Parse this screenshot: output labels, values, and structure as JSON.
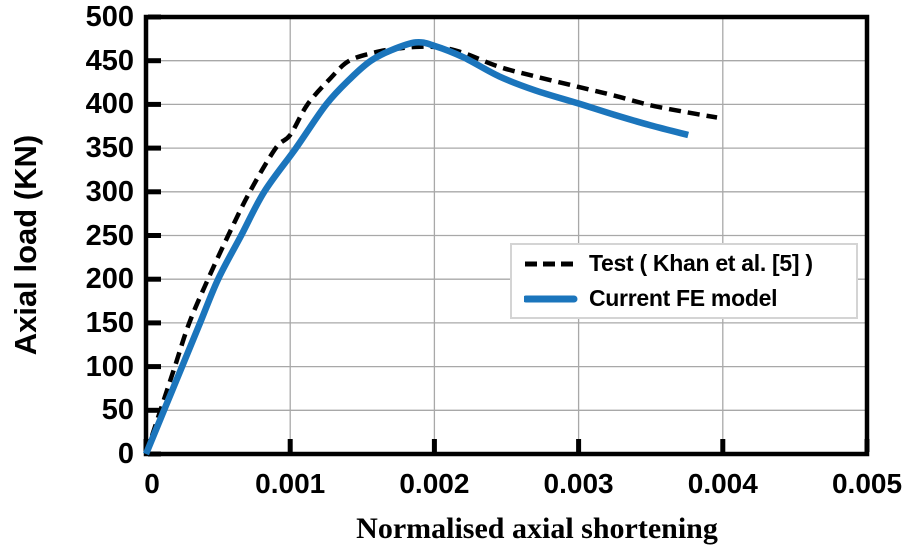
{
  "chart_data": {
    "type": "line",
    "title": "",
    "xlabel": "Normalised axial shortening",
    "ylabel": "Axial load (KN)",
    "xlim": [
      0,
      0.005
    ],
    "ylim": [
      0,
      500
    ],
    "grid": true,
    "x_ticks": [
      "0",
      "0.001",
      "0.002",
      "0.003",
      "0.004",
      "0.005"
    ],
    "x_tick_values": [
      0,
      0.001,
      0.002,
      0.003,
      0.004,
      0.005
    ],
    "y_ticks": [
      "0",
      "50",
      "100",
      "150",
      "200",
      "250",
      "300",
      "350",
      "400",
      "450",
      "500"
    ],
    "y_tick_values": [
      0,
      50,
      100,
      150,
      200,
      250,
      300,
      350,
      400,
      450,
      500
    ],
    "legend_position": "center-right",
    "colors": {
      "axis": "#000000",
      "grid": "#a8a8a8",
      "background": "#ffffff",
      "legend_border": "#d4d4d4",
      "test_series": "#000000",
      "fe_series": "#1b75bc"
    },
    "series": [
      {
        "id": "test-curve",
        "name": "Test ( Khan et al. [5] )",
        "style": "dashed",
        "color": "#000000",
        "stroke_width": 4.5,
        "dash": "12 7",
        "points": [
          [
            0,
            0
          ],
          [
            0.0001,
            50
          ],
          [
            0.0002,
            100
          ],
          [
            0.0003,
            150
          ],
          [
            0.00043,
            200
          ],
          [
            0.00057,
            250
          ],
          [
            0.00072,
            300
          ],
          [
            0.0009,
            350
          ],
          [
            0.001,
            365
          ],
          [
            0.00112,
            400
          ],
          [
            0.00128,
            430
          ],
          [
            0.00141,
            450
          ],
          [
            0.0016,
            460
          ],
          [
            0.00175,
            464
          ],
          [
            0.0019,
            466
          ],
          [
            0.00205,
            465
          ],
          [
            0.0022,
            459
          ],
          [
            0.00245,
            443
          ],
          [
            0.0027,
            432
          ],
          [
            0.003,
            420
          ],
          [
            0.00325,
            410
          ],
          [
            0.0035,
            399
          ],
          [
            0.00375,
            391
          ],
          [
            0.00396,
            385
          ]
        ]
      },
      {
        "id": "fe-curve",
        "name": "Current FE model",
        "style": "solid",
        "color": "#1b75bc",
        "stroke_width": 6.5,
        "dash": "",
        "points": [
          [
            0,
            0
          ],
          [
            0.000125,
            50
          ],
          [
            0.00025,
            100
          ],
          [
            0.000375,
            150
          ],
          [
            0.0005,
            200
          ],
          [
            0.00066,
            250
          ],
          [
            0.00082,
            300
          ],
          [
            0.00104,
            350
          ],
          [
            0.00125,
            400
          ],
          [
            0.00142,
            430
          ],
          [
            0.00156,
            450
          ],
          [
            0.0017,
            462
          ],
          [
            0.00187,
            471
          ],
          [
            0.002,
            467
          ],
          [
            0.0022,
            454
          ],
          [
            0.00245,
            432
          ],
          [
            0.0027,
            416
          ],
          [
            0.003,
            401
          ],
          [
            0.00325,
            388
          ],
          [
            0.0035,
            376
          ],
          [
            0.00376,
            365
          ]
        ]
      }
    ]
  }
}
